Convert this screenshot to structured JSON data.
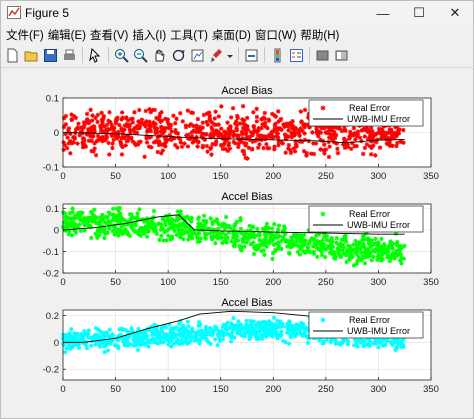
{
  "window": {
    "title": "Figure 5",
    "minimize_glyph": "—",
    "maximize_glyph": "☐",
    "close_glyph": "✕"
  },
  "menu": [
    "文件(F)",
    "编辑(E)",
    "查看(V)",
    "插入(I)",
    "工具(T)",
    "桌面(D)",
    "窗口(W)",
    "帮助(H)"
  ],
  "toolbar_icons": [
    "new-figure-icon",
    "open-file-icon",
    "save-icon",
    "print-icon",
    "pointer-icon",
    "zoom-in-icon",
    "zoom-out-icon",
    "pan-icon",
    "rotate-3d-icon",
    "data-cursor-icon",
    "brush-icon",
    "brush-dropdown-icon",
    "link-icon",
    "colorbar-icon",
    "legend-icon",
    "hide-plot-tools-icon",
    "show-plot-tools-icon"
  ],
  "chart_data": [
    {
      "type": "scatter",
      "title": "Accel Bias",
      "xlim": [
        0,
        350
      ],
      "ylim": [
        -0.1,
        0.1
      ],
      "xticks": [
        0,
        50,
        100,
        150,
        200,
        250,
        300,
        350
      ],
      "yticks": [
        -0.1,
        0,
        0.1
      ],
      "ytick_labels": [
        "-0.1",
        "0",
        "0.1"
      ],
      "legend_position": "top-right",
      "grid": true,
      "series": [
        {
          "name": "Real Error",
          "kind": "scatter",
          "color": "#ff0000",
          "x_range": [
            0,
            325
          ],
          "center": [
            [
              0,
              0.0
            ],
            [
              325,
              0.0
            ]
          ],
          "spread": 0.045
        },
        {
          "name": "UWB-IMU  Error",
          "kind": "line",
          "color": "#000000",
          "x": [
            0,
            30,
            60,
            90,
            120,
            150,
            180,
            210,
            240,
            270,
            300,
            325
          ],
          "y": [
            0.0,
            -0.002,
            -0.005,
            -0.01,
            -0.015,
            -0.018,
            -0.02,
            -0.022,
            -0.024,
            -0.03,
            -0.022,
            -0.02
          ]
        }
      ]
    },
    {
      "type": "scatter",
      "title": "Accel Bias",
      "xlim": [
        0,
        350
      ],
      "ylim": [
        -0.2,
        0.12
      ],
      "xticks": [
        0,
        50,
        100,
        150,
        200,
        250,
        300,
        350
      ],
      "yticks": [
        -0.2,
        -0.1,
        0,
        0.1
      ],
      "ytick_labels": [
        "-0.2",
        "-0.1",
        "0",
        "0.1"
      ],
      "legend_position": "top-right",
      "grid": true,
      "series": [
        {
          "name": "Real Error",
          "kind": "scatter",
          "color": "#00ff00",
          "x_range": [
            0,
            325
          ],
          "center": [
            [
              0,
              0.04
            ],
            [
              100,
              0.02
            ],
            [
              200,
              -0.05
            ],
            [
              325,
              -0.1
            ]
          ],
          "spread": 0.05
        },
        {
          "name": "UWB-IMU  Error",
          "kind": "line",
          "color": "#000000",
          "x": [
            0,
            30,
            60,
            90,
            110,
            125,
            150,
            200,
            250,
            300,
            325
          ],
          "y": [
            0.0,
            0.01,
            0.03,
            0.06,
            0.07,
            0.0,
            -0.005,
            -0.01,
            -0.015,
            -0.02,
            -0.02
          ]
        }
      ]
    },
    {
      "type": "scatter",
      "title": "Accel Bias",
      "xlim": [
        0,
        350
      ],
      "ylim": [
        -0.28,
        0.24
      ],
      "xticks": [
        0,
        50,
        100,
        150,
        200,
        250,
        300,
        350
      ],
      "yticks": [
        -0.2,
        0,
        0.2
      ],
      "ytick_labels": [
        "-0.2",
        "0",
        "0.2"
      ],
      "legend_position": "top-right",
      "grid": true,
      "series": [
        {
          "name": "Real Error",
          "kind": "scatter",
          "color": "#00ffff",
          "x_range": [
            0,
            325
          ],
          "center": [
            [
              0,
              0.0
            ],
            [
              100,
              0.05
            ],
            [
              200,
              0.1
            ],
            [
              325,
              0.02
            ]
          ],
          "spread": 0.06
        },
        {
          "name": "UWB-IMU  Error",
          "kind": "line",
          "color": "#000000",
          "x": [
            0,
            20,
            50,
            80,
            110,
            130,
            160,
            200,
            240,
            280,
            310
          ],
          "y": [
            0.0,
            0.0,
            0.03,
            0.1,
            0.16,
            0.21,
            0.23,
            0.22,
            0.19,
            0.14,
            0.12
          ]
        }
      ]
    }
  ]
}
